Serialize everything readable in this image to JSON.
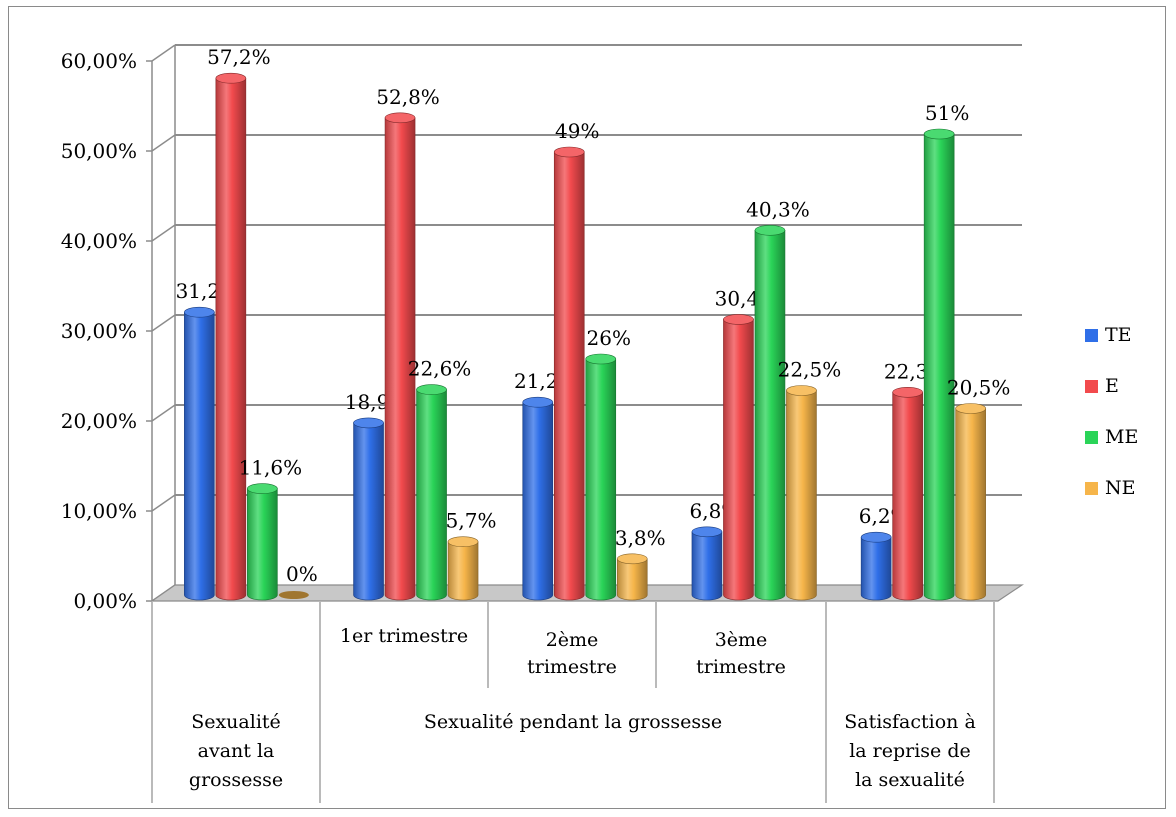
{
  "chart_data": {
    "type": "bar",
    "style": "3d-cylinder",
    "categories": [
      "Sexualité avant la grossesse",
      "1er trimestre",
      "2ème trimestre",
      "3ème trimestre",
      "Satisfaction à la reprise de la sexualité"
    ],
    "category_labels": [
      [
        "Sexualité",
        "avant la",
        "grossesse"
      ],
      [
        "1er trimestre"
      ],
      [
        "2ème",
        "trimestre"
      ],
      [
        "3ème",
        "trimestre"
      ],
      [
        "Satisfaction à",
        "la reprise de",
        "la sexualité"
      ]
    ],
    "group_label": "Sexualité pendant la grossesse",
    "series": [
      {
        "name": "TE",
        "values": [
          31.2,
          18.9,
          21.2,
          6.8,
          6.2
        ],
        "labels": [
          "31,2%",
          "18,9%",
          "21,2%",
          "6,8%",
          "6,2%"
        ],
        "color": "#2f6fe8"
      },
      {
        "name": "E",
        "values": [
          57.2,
          52.8,
          49,
          30.4,
          22.3
        ],
        "labels": [
          "57,2%",
          "52,8%",
          "49%",
          "30,4%",
          "22,3%"
        ],
        "color": "#f24a4d"
      },
      {
        "name": "ME",
        "values": [
          11.6,
          22.6,
          26,
          40.3,
          51
        ],
        "labels": [
          "11,6%",
          "22,6%",
          "26%",
          "40,3%",
          "51%"
        ],
        "color": "#2ad458"
      },
      {
        "name": "NE",
        "values": [
          0,
          5.7,
          3.8,
          22.5,
          20.5
        ],
        "labels": [
          "0%",
          "5,7%",
          "3,8%",
          "22,5%",
          "20,5%"
        ],
        "color": "#f6b54a"
      }
    ],
    "y_ticks": [
      "0,00%",
      "10,00%",
      "20,00%",
      "30,00%",
      "40,00%",
      "50,00%",
      "60,00%"
    ],
    "ylim": [
      0,
      60
    ],
    "grid": true,
    "legend_position": "right",
    "title": "",
    "xlabel": "",
    "ylabel": ""
  }
}
